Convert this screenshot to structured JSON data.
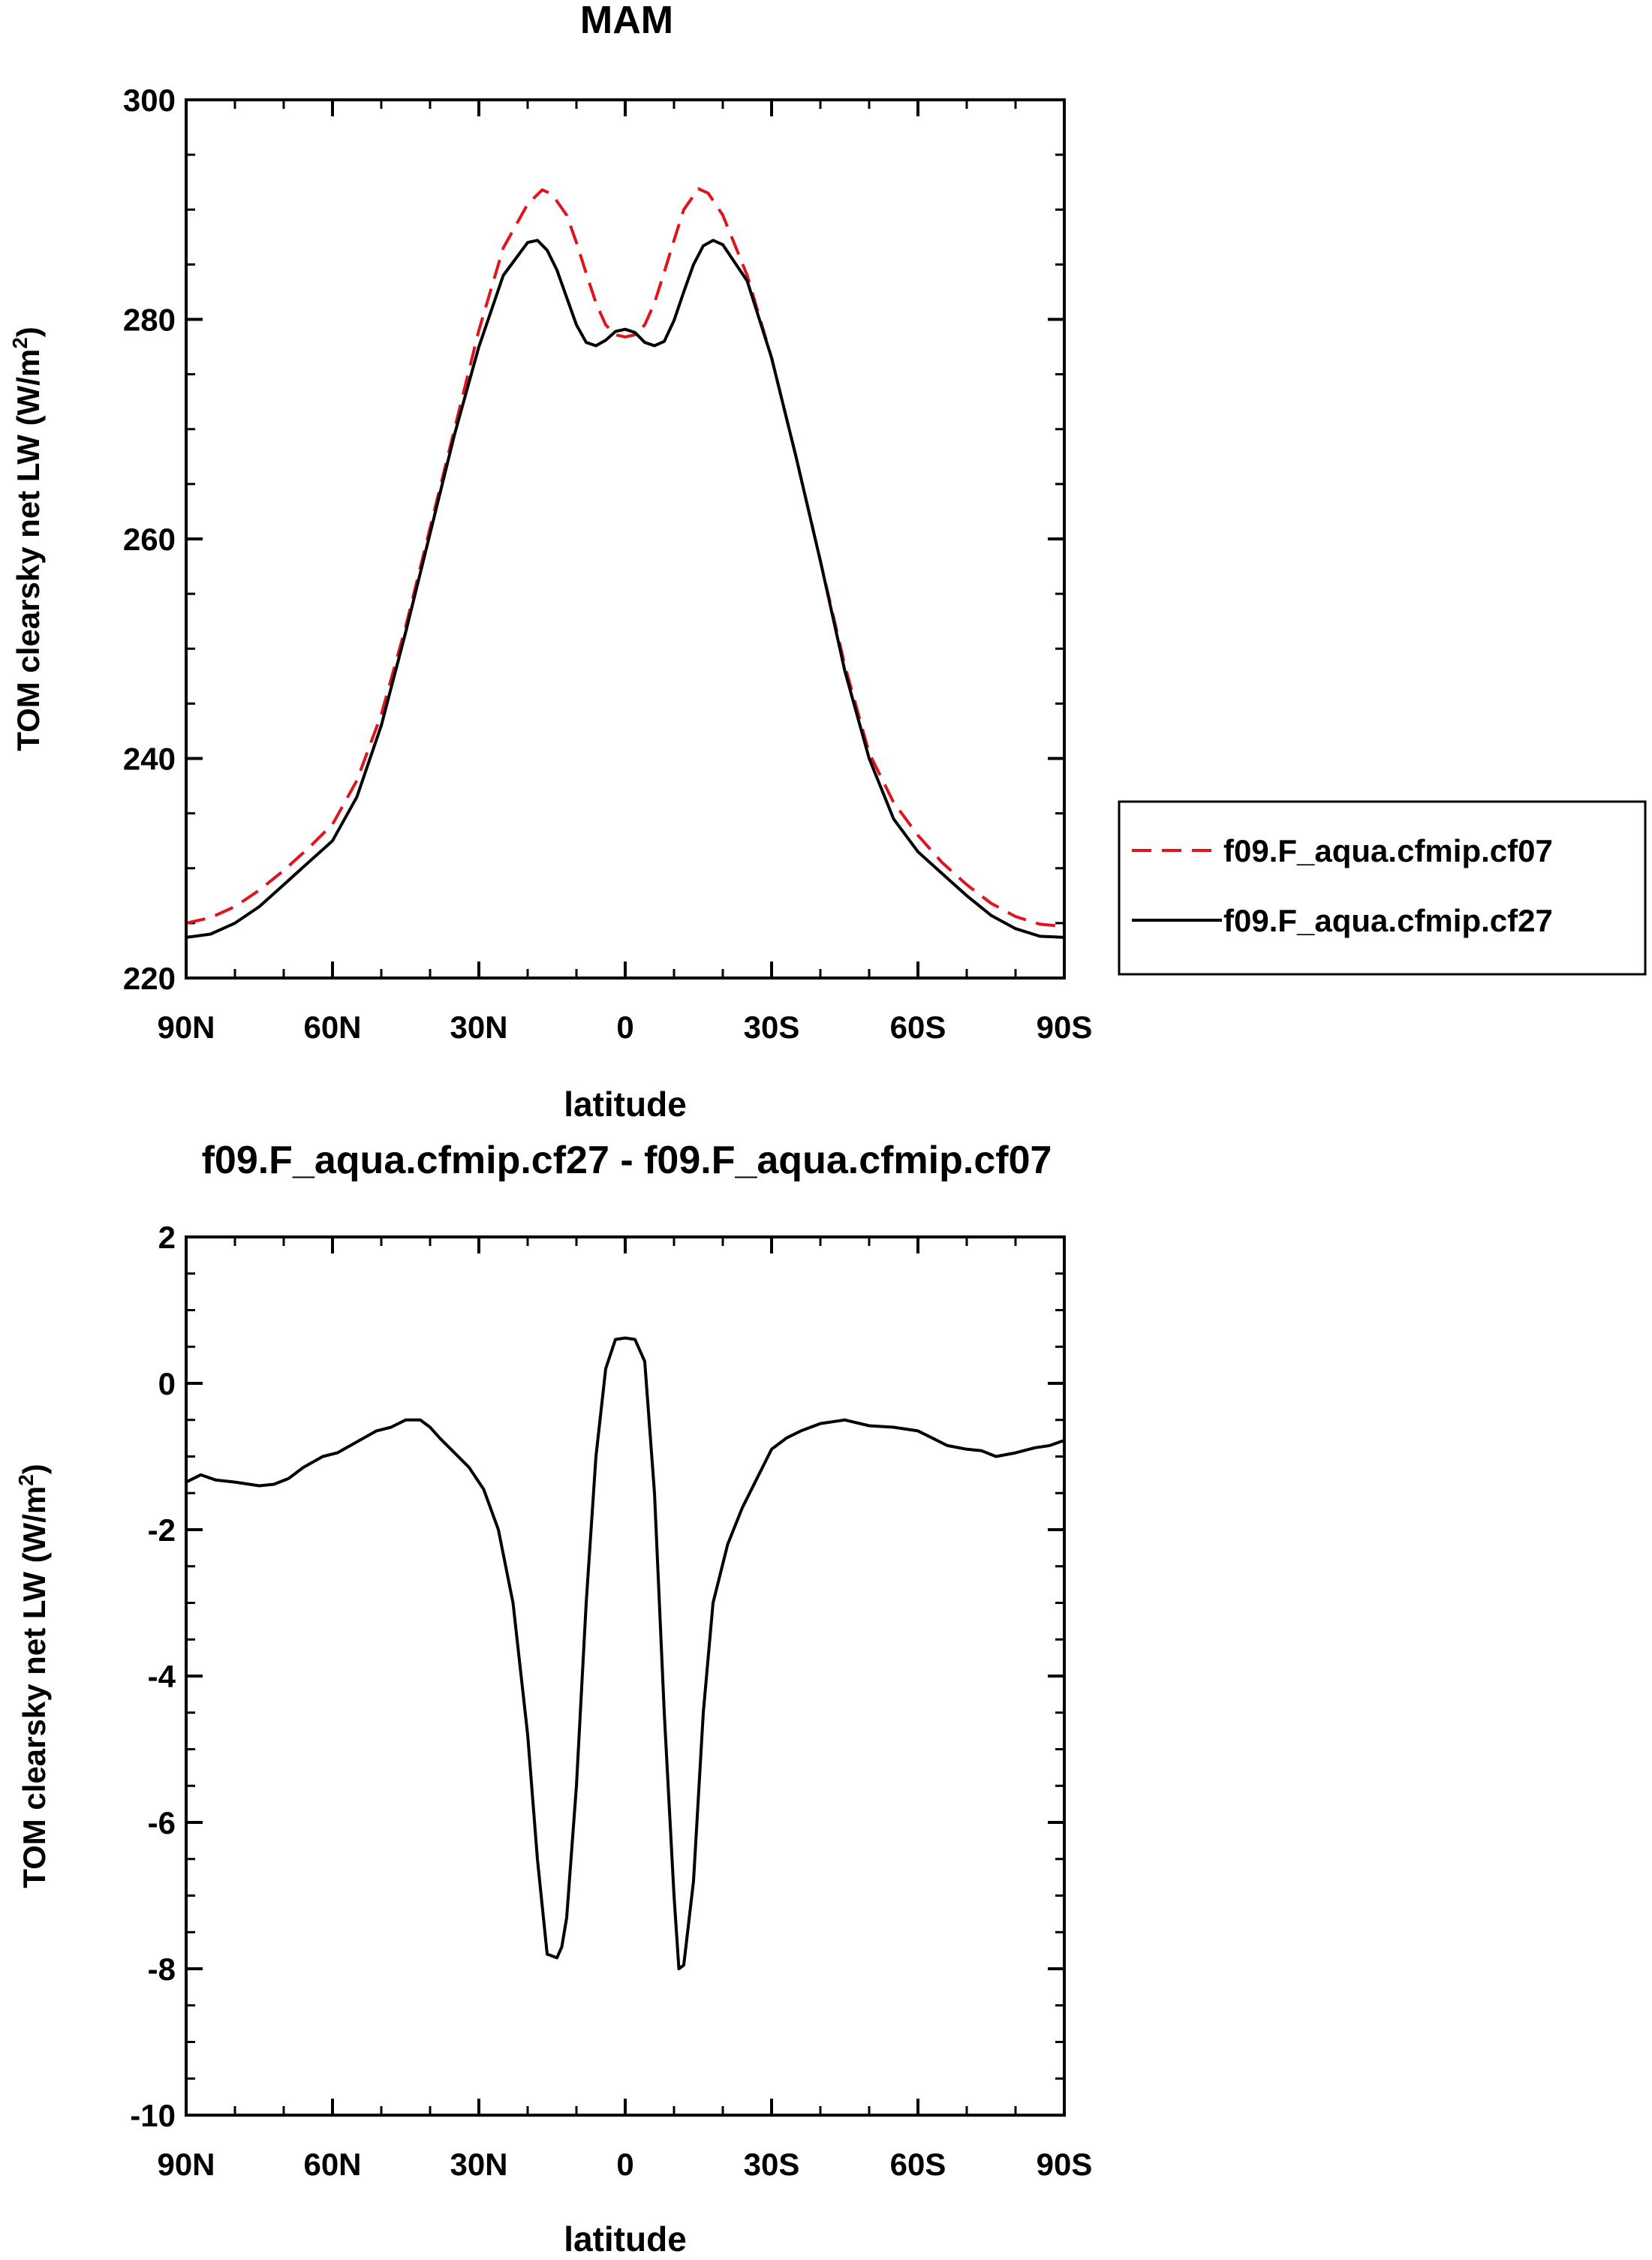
{
  "chart_data": [
    {
      "type": "line",
      "title": "MAM",
      "xlabel": "latitude",
      "ylabel": "TOM clearsky net LW (W/m",
      "ylabel_sup": "2",
      "ylabel_suffix": ")",
      "xlim": [
        90,
        -90
      ],
      "ylim": [
        220,
        300
      ],
      "yticks": [
        220,
        240,
        260,
        280,
        300
      ],
      "ytick_labels": [
        "220",
        "240",
        "260",
        "280",
        "300"
      ],
      "yminor_step": 5,
      "xticks": [
        90,
        60,
        30,
        0,
        -30,
        -60,
        -90
      ],
      "xtick_labels": [
        "90N",
        "60N",
        "30N",
        "0",
        "30S",
        "60S",
        "90S"
      ],
      "xminor_step": 10,
      "legend": {
        "placement": "right",
        "entries": [
          "f09.F_aqua.cfmip.cf07",
          "f09.F_aqua.cfmip.cf27"
        ]
      },
      "series": [
        {
          "name": "f09.F_aqua.cfmip.cf07",
          "color": "#e0151b",
          "style": "dashed",
          "x": [
            90,
            85,
            80,
            75,
            70,
            65,
            60,
            55,
            50,
            45,
            40,
            35,
            30,
            25,
            20,
            17,
            15,
            12,
            10,
            8,
            6,
            4,
            2,
            0,
            -2,
            -4,
            -6,
            -8,
            -10,
            -12,
            -15,
            -17,
            -20,
            -25,
            -30,
            -35,
            -40,
            -45,
            -50,
            -55,
            -60,
            -65,
            -70,
            -75,
            -80,
            -85,
            -90
          ],
          "y": [
            225.0,
            225.5,
            226.5,
            228.0,
            229.8,
            231.8,
            234.0,
            238.0,
            244.0,
            252.0,
            261.0,
            270.0,
            279.0,
            286.5,
            290.5,
            291.8,
            291.4,
            289.5,
            287.0,
            284.2,
            281.5,
            279.5,
            278.6,
            278.4,
            278.6,
            279.5,
            281.5,
            284.3,
            287.2,
            290.0,
            291.9,
            291.5,
            289.5,
            284.0,
            276.5,
            267.5,
            258.0,
            248.5,
            240.5,
            236.0,
            233.0,
            230.5,
            228.5,
            226.8,
            225.6,
            224.9,
            224.7
          ]
        },
        {
          "name": "f09.F_aqua.cfmip.cf27",
          "color": "#000000",
          "style": "solid",
          "x": [
            90,
            85,
            80,
            75,
            70,
            65,
            60,
            55,
            50,
            45,
            40,
            35,
            30,
            25,
            20,
            18,
            16,
            14,
            12,
            10,
            8,
            6,
            4,
            2,
            0,
            -2,
            -4,
            -6,
            -8,
            -10,
            -12,
            -14,
            -16,
            -18,
            -20,
            -25,
            -30,
            -35,
            -40,
            -45,
            -50,
            -55,
            -60,
            -65,
            -70,
            -75,
            -80,
            -85,
            -90
          ],
          "y": [
            223.7,
            224.0,
            225.0,
            226.5,
            228.5,
            230.5,
            232.5,
            236.5,
            243.0,
            251.5,
            260.5,
            269.5,
            277.5,
            284.0,
            287.0,
            287.2,
            286.3,
            284.5,
            282.0,
            279.5,
            277.9,
            277.6,
            278.1,
            278.9,
            279.1,
            278.8,
            277.9,
            277.6,
            278.0,
            279.9,
            282.5,
            285.0,
            286.7,
            287.2,
            286.8,
            283.5,
            276.5,
            267.5,
            258.0,
            248.0,
            240.0,
            234.5,
            231.5,
            229.5,
            227.5,
            225.7,
            224.5,
            223.8,
            223.7
          ]
        }
      ]
    },
    {
      "type": "line",
      "title": "f09.F_aqua.cfmip.cf27 - f09.F_aqua.cfmip.cf07",
      "xlabel": "latitude",
      "ylabel": "TOM clearsky net LW (W/m",
      "ylabel_sup": "2",
      "ylabel_suffix": ")",
      "xlim": [
        90,
        -90
      ],
      "ylim": [
        -10,
        2
      ],
      "yticks": [
        -10,
        -8,
        -6,
        -4,
        -2,
        0,
        2
      ],
      "ytick_labels": [
        "-10",
        "-8",
        "-6",
        "-4",
        "-2",
        "0",
        "2"
      ],
      "yminor_step": 0.5,
      "xticks": [
        90,
        60,
        30,
        0,
        -30,
        -60,
        -90
      ],
      "xtick_labels": [
        "90N",
        "60N",
        "30N",
        "0",
        "30S",
        "60S",
        "90S"
      ],
      "xminor_step": 10,
      "series": [
        {
          "name": "f09.F_aqua.cfmip.cf27 - f09.F_aqua.cfmip.cf07",
          "color": "#000000",
          "style": "solid",
          "x": [
            90,
            87,
            84,
            80,
            75,
            72,
            69,
            66,
            62,
            59,
            55,
            51,
            48,
            45,
            42,
            40,
            38,
            35,
            32,
            29,
            26,
            23,
            20,
            18,
            16,
            14,
            13,
            12,
            10,
            8,
            6,
            4,
            2,
            0,
            -2,
            -4,
            -6,
            -8,
            -10,
            -11,
            -12,
            -14,
            -16,
            -18,
            -21,
            -24,
            -27,
            -30,
            -33,
            -36,
            -40,
            -45,
            -50,
            -55,
            -60,
            -63,
            -66,
            -70,
            -73,
            -76,
            -80,
            -84,
            -87,
            -90
          ],
          "y": [
            -1.35,
            -1.25,
            -1.32,
            -1.35,
            -1.4,
            -1.38,
            -1.3,
            -1.15,
            -1.0,
            -0.95,
            -0.8,
            -0.65,
            -0.6,
            -0.5,
            -0.5,
            -0.6,
            -0.75,
            -0.95,
            -1.15,
            -1.45,
            -2.0,
            -3.0,
            -4.8,
            -6.5,
            -7.8,
            -7.85,
            -7.7,
            -7.3,
            -5.5,
            -3.0,
            -1.0,
            0.2,
            0.6,
            0.62,
            0.6,
            0.3,
            -1.5,
            -4.5,
            -7.0,
            -8.0,
            -7.95,
            -6.8,
            -4.5,
            -3.0,
            -2.2,
            -1.7,
            -1.3,
            -0.9,
            -0.75,
            -0.65,
            -0.55,
            -0.5,
            -0.58,
            -0.6,
            -0.65,
            -0.75,
            -0.85,
            -0.9,
            -0.92,
            -1.0,
            -0.95,
            -0.88,
            -0.85,
            -0.78
          ]
        }
      ]
    }
  ]
}
